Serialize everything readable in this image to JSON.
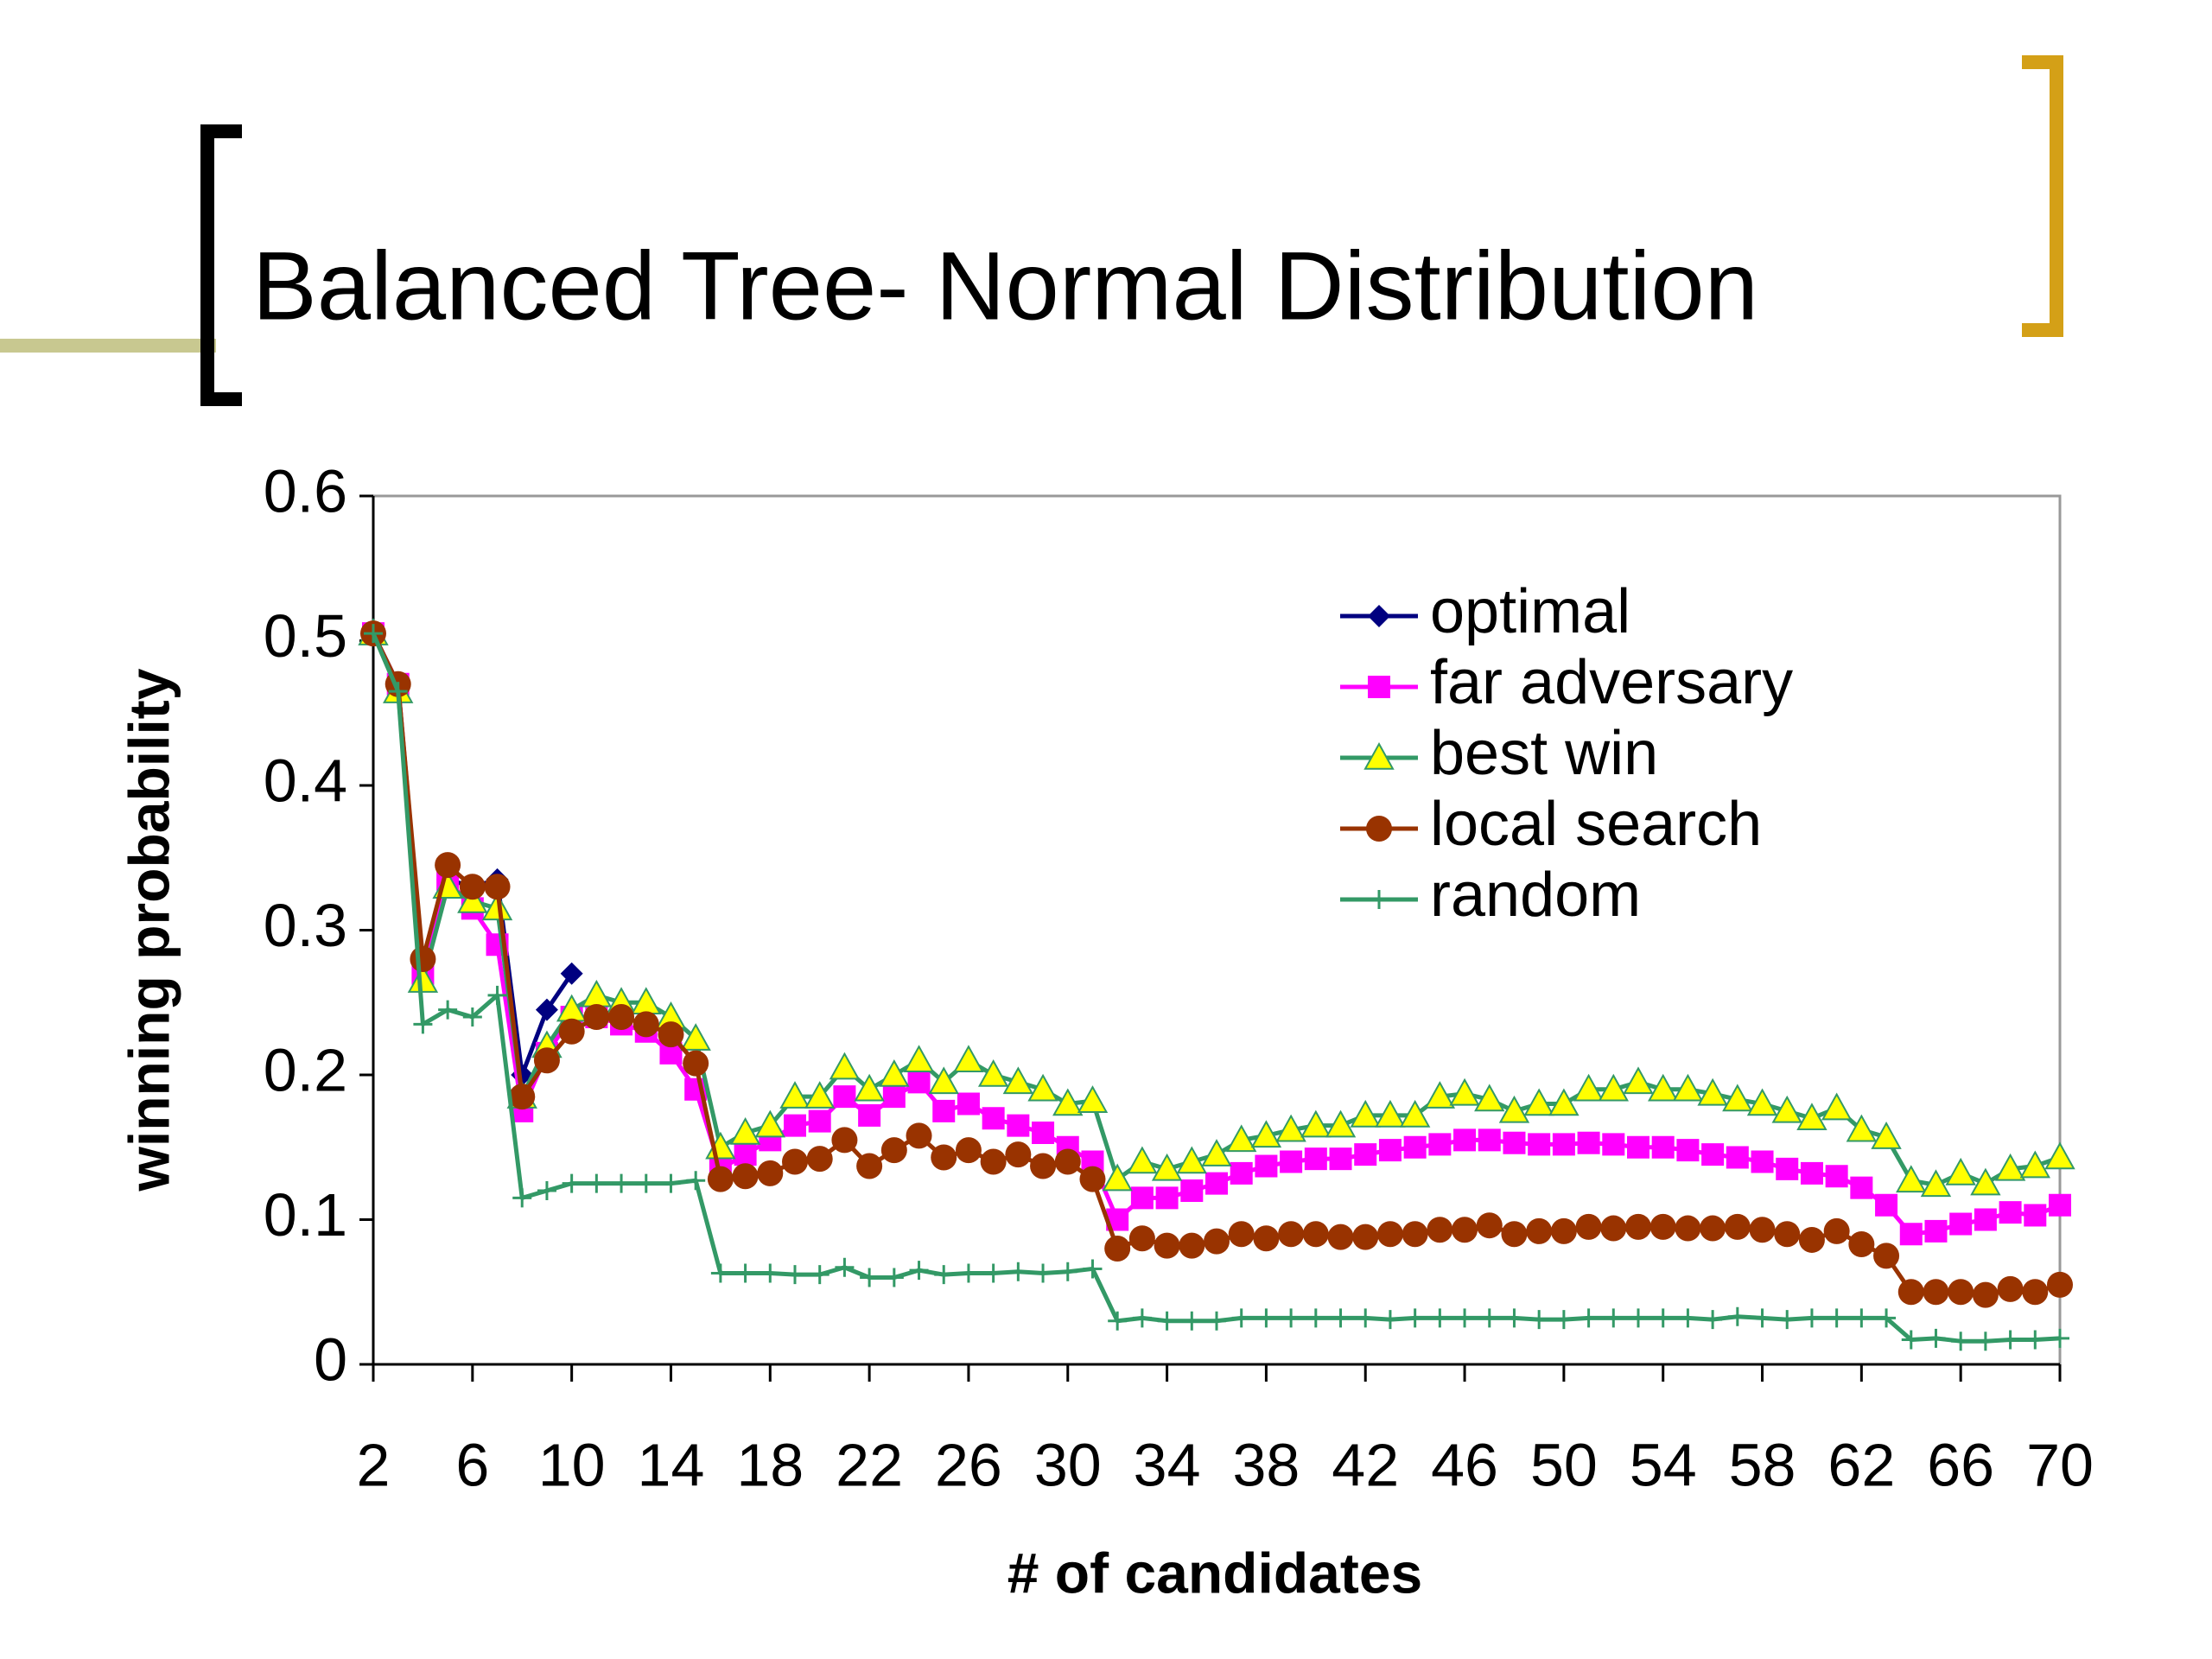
{
  "chart_data": {
    "type": "line",
    "title": "Balanced Tree- Normal Distribution",
    "xlabel": "# of candidates",
    "ylabel": "winning probability",
    "x": [
      2,
      3,
      4,
      5,
      6,
      7,
      8,
      9,
      10,
      11,
      12,
      13,
      14,
      15,
      16,
      17,
      18,
      19,
      20,
      21,
      22,
      23,
      24,
      25,
      26,
      27,
      28,
      29,
      30,
      31,
      32,
      33,
      34,
      35,
      36,
      37,
      38,
      39,
      40,
      41,
      42,
      43,
      44,
      45,
      46,
      47,
      48,
      49,
      50,
      51,
      52,
      53,
      54,
      55,
      56,
      57,
      58,
      59,
      60,
      61,
      62,
      63,
      64,
      65,
      66,
      67,
      68,
      69,
      70
    ],
    "xlim": [
      2,
      70
    ],
    "xticks": [
      2,
      6,
      10,
      14,
      18,
      22,
      26,
      30,
      34,
      38,
      42,
      46,
      50,
      54,
      58,
      62,
      66,
      70
    ],
    "ylim": [
      0,
      0.6
    ],
    "yticks": [
      0,
      0.1,
      0.2,
      0.3,
      0.4,
      0.5,
      0.6
    ],
    "legend": "upper right",
    "series": [
      {
        "name": "optimal",
        "color": "#000080",
        "marker": "diamond",
        "marker_color": "#000080",
        "values": [
          0.505,
          0.47,
          0.275,
          0.335,
          0.33,
          0.335,
          0.2,
          0.245,
          0.27,
          null,
          null,
          null,
          null,
          null,
          null,
          null,
          null,
          null,
          null,
          null,
          null,
          null,
          null,
          null,
          null,
          null,
          null,
          null,
          null,
          null,
          null,
          null,
          null,
          null,
          null,
          null,
          null,
          null,
          null,
          null,
          null,
          null,
          null,
          null,
          null,
          null,
          null,
          null,
          null,
          null,
          null,
          null,
          null,
          null,
          null,
          null,
          null,
          null,
          null,
          null,
          null,
          null,
          null,
          null,
          null,
          null,
          null,
          null,
          null
        ]
      },
      {
        "name": "far adversary",
        "color": "#ff00ff",
        "marker": "square",
        "marker_color": "#ff00ff",
        "values": [
          0.505,
          0.47,
          0.27,
          0.335,
          0.315,
          0.29,
          0.175,
          0.215,
          0.24,
          0.24,
          0.235,
          0.23,
          0.215,
          0.19,
          0.135,
          0.145,
          0.155,
          0.165,
          0.168,
          0.185,
          0.172,
          0.185,
          0.195,
          0.175,
          0.18,
          0.17,
          0.165,
          0.16,
          0.15,
          0.14,
          0.1,
          0.115,
          0.115,
          0.12,
          0.125,
          0.132,
          0.137,
          0.14,
          0.142,
          0.142,
          0.145,
          0.148,
          0.15,
          0.152,
          0.155,
          0.155,
          0.153,
          0.152,
          0.152,
          0.153,
          0.152,
          0.15,
          0.15,
          0.148,
          0.145,
          0.143,
          0.14,
          0.135,
          0.132,
          0.13,
          0.122,
          0.11,
          0.09,
          0.092,
          0.097,
          0.1,
          0.105,
          0.103,
          0.11
        ]
      },
      {
        "name": "best win",
        "color": "#339966",
        "marker": "triangle",
        "marker_color": "#ffff00",
        "values": [
          0.505,
          0.465,
          0.265,
          0.33,
          0.32,
          0.315,
          0.185,
          0.22,
          0.245,
          0.255,
          0.25,
          0.25,
          0.24,
          0.225,
          0.15,
          0.16,
          0.165,
          0.185,
          0.185,
          0.205,
          0.19,
          0.2,
          0.21,
          0.195,
          0.21,
          0.2,
          0.195,
          0.19,
          0.18,
          0.182,
          0.128,
          0.14,
          0.135,
          0.14,
          0.145,
          0.155,
          0.158,
          0.162,
          0.165,
          0.165,
          0.172,
          0.172,
          0.172,
          0.185,
          0.187,
          0.183,
          0.175,
          0.18,
          0.18,
          0.19,
          0.19,
          0.195,
          0.19,
          0.19,
          0.187,
          0.183,
          0.18,
          0.175,
          0.17,
          0.177,
          0.162,
          0.157,
          0.127,
          0.124,
          0.132,
          0.125,
          0.135,
          0.137,
          0.143
        ]
      },
      {
        "name": "local search",
        "color": "#993300",
        "marker": "circle",
        "marker_color": "#993300",
        "values": [
          0.505,
          0.47,
          0.28,
          0.345,
          0.33,
          0.33,
          0.185,
          0.21,
          0.23,
          0.24,
          0.24,
          0.235,
          0.228,
          0.208,
          0.128,
          0.13,
          0.132,
          0.14,
          0.142,
          0.155,
          0.137,
          0.148,
          0.158,
          0.143,
          0.148,
          0.14,
          0.145,
          0.137,
          0.14,
          0.128,
          0.08,
          0.087,
          0.082,
          0.082,
          0.085,
          0.09,
          0.087,
          0.09,
          0.09,
          0.088,
          0.088,
          0.09,
          0.09,
          0.093,
          0.093,
          0.096,
          0.09,
          0.092,
          0.092,
          0.095,
          0.094,
          0.095,
          0.095,
          0.094,
          0.094,
          0.095,
          0.093,
          0.09,
          0.086,
          0.092,
          0.083,
          0.075,
          0.05,
          0.05,
          0.05,
          0.048,
          0.052,
          0.05,
          0.055
        ]
      },
      {
        "name": "random",
        "color": "#339966",
        "marker": "plus",
        "marker_color": "#339966",
        "values": [
          0.505,
          0.465,
          0.235,
          0.245,
          0.24,
          0.255,
          0.115,
          0.12,
          0.125,
          0.125,
          0.125,
          0.125,
          0.125,
          0.127,
          0.063,
          0.063,
          0.063,
          0.062,
          0.062,
          0.067,
          0.06,
          0.06,
          0.065,
          0.062,
          0.063,
          0.063,
          0.064,
          0.063,
          0.064,
          0.066,
          0.03,
          0.032,
          0.03,
          0.03,
          0.03,
          0.032,
          0.032,
          0.032,
          0.032,
          0.032,
          0.032,
          0.031,
          0.032,
          0.032,
          0.032,
          0.032,
          0.032,
          0.031,
          0.031,
          0.032,
          0.032,
          0.032,
          0.032,
          0.032,
          0.031,
          0.033,
          0.032,
          0.031,
          0.032,
          0.032,
          0.032,
          0.032,
          0.017,
          0.018,
          0.016,
          0.016,
          0.017,
          0.017,
          0.018
        ]
      }
    ]
  }
}
